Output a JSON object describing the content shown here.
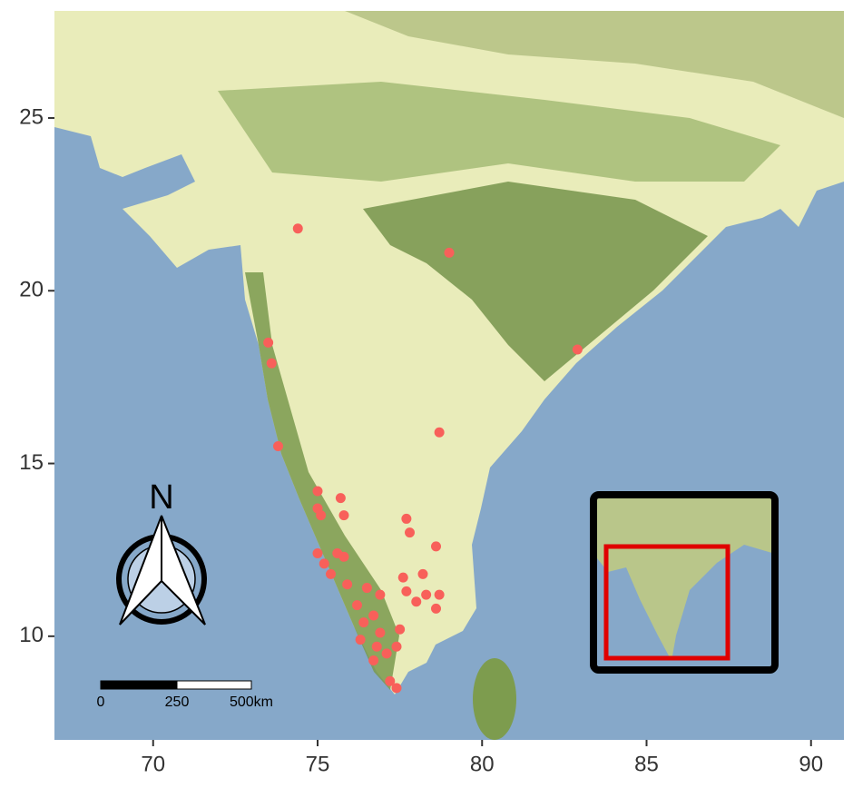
{
  "chart_data": {
    "type": "scatter",
    "x": [
      74.4,
      79.0,
      82.9,
      73.5,
      73.6,
      73.8,
      78.7,
      75.0,
      75.7,
      75.0,
      75.1,
      75.8,
      77.7,
      77.8,
      78.6,
      75.0,
      75.6,
      75.8,
      75.2,
      75.4,
      78.2,
      77.6,
      75.9,
      76.5,
      76.9,
      77.7,
      78.3,
      78.7,
      78.0,
      78.6,
      76.2,
      76.7,
      76.4,
      77.5,
      76.9,
      76.3,
      76.8,
      77.4,
      77.1,
      76.7,
      77.2,
      77.4
    ],
    "y": [
      21.8,
      21.1,
      18.3,
      18.5,
      17.9,
      15.5,
      15.9,
      14.2,
      14.0,
      13.7,
      13.5,
      13.5,
      13.4,
      13.0,
      12.6,
      12.4,
      12.4,
      12.3,
      12.1,
      11.8,
      11.8,
      11.7,
      11.5,
      11.4,
      11.2,
      11.3,
      11.2,
      11.2,
      11.0,
      10.8,
      10.9,
      10.6,
      10.4,
      10.2,
      10.1,
      9.9,
      9.7,
      9.7,
      9.5,
      9.3,
      8.7,
      8.5
    ],
    "color": "#f8605a",
    "xlim": [
      67,
      91
    ],
    "ylim": [
      7,
      28.1
    ],
    "xticks": [
      70,
      75,
      80,
      85,
      90
    ],
    "yticks": [
      10,
      15,
      20,
      25
    ],
    "north_label": "N",
    "scale_labels": [
      "0",
      "250",
      "500km"
    ]
  }
}
